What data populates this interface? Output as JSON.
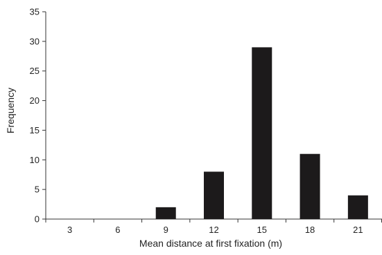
{
  "chart_data": {
    "type": "bar",
    "categories": [
      "3",
      "6",
      "9",
      "12",
      "15",
      "18",
      "21"
    ],
    "values": [
      0,
      0,
      2,
      8,
      29,
      11,
      4
    ],
    "title": "",
    "xlabel": "Mean distance at first fixation (m)",
    "ylabel": "Frequency",
    "ylim": [
      0,
      35
    ],
    "yticks": [
      0,
      5,
      10,
      15,
      20,
      25,
      30,
      35
    ],
    "grid": false,
    "bar_color": "#1c1a1b"
  }
}
